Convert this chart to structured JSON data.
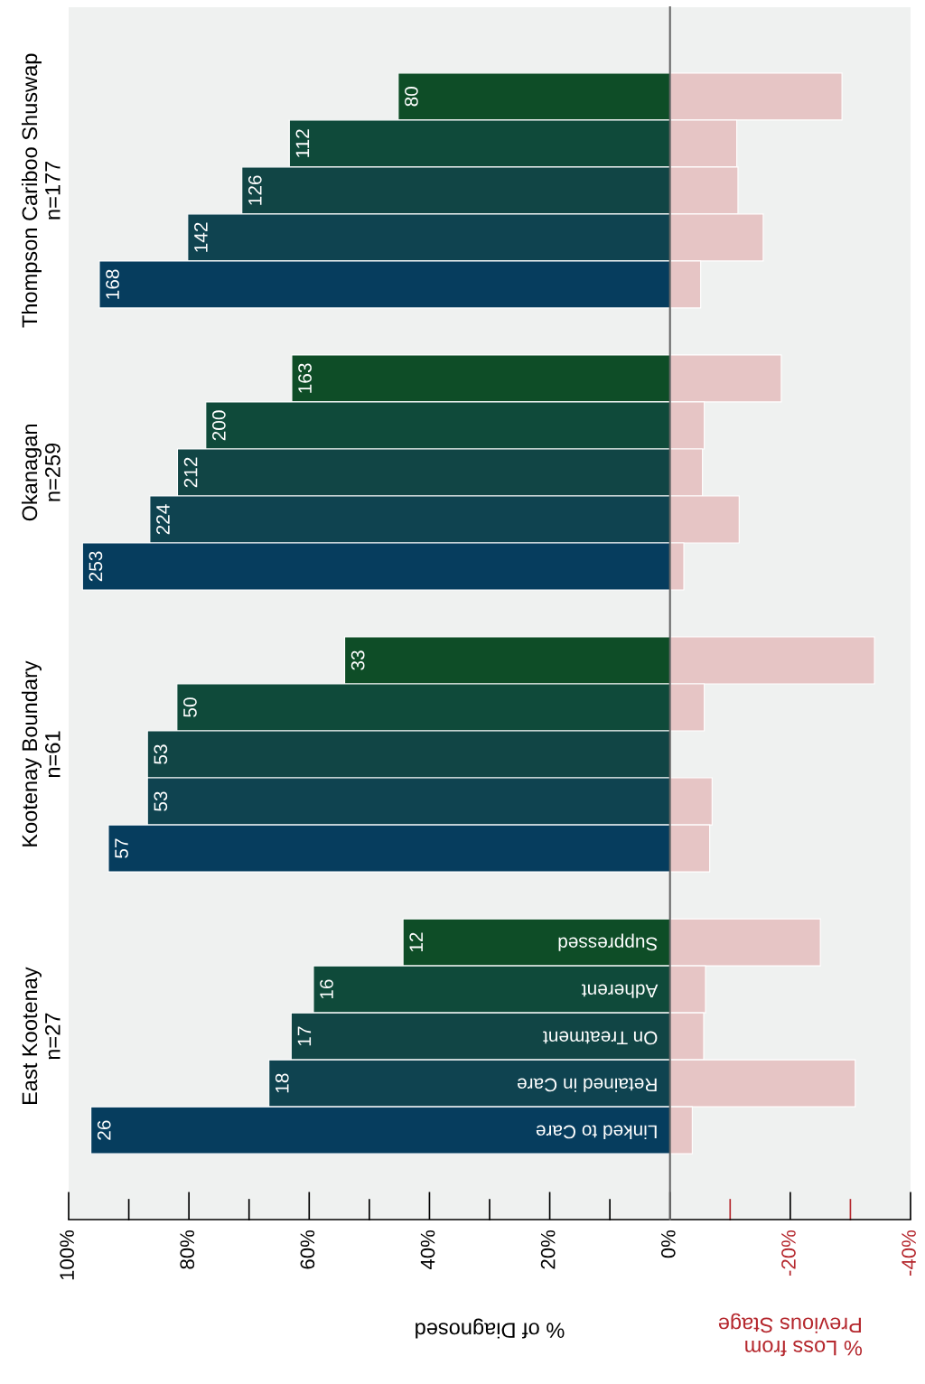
{
  "chart_data": {
    "type": "bar",
    "orientation": "horizontal",
    "xlabel": "% of Diagnosed",
    "categories": [
      null,
      null,
      null,
      null,
      null,
      null,
      null,
      null,
      null,
      null,
      null,
      null,
      null,
      null,
      null,
      null,
      null,
      null,
      "Suppressed",
      "Adherent",
      "On Treatment",
      "Retained in Care",
      "Linked to Care"
    ],
    "series": [
      {
        "colors": [
          "#0e4d27",
          "#0f4a3a",
          "#114545",
          "#0f4350",
          "#063d5e",
          null,
          "#0e4d27",
          "#0f4a3a",
          "#114545",
          "#0f4350",
          "#063d5e",
          null,
          "#0e4d27",
          "#0f4a3a",
          "#114545",
          "#0f4350",
          "#063d5e",
          null,
          "#0e4d27",
          "#0f4a3a",
          "#114545",
          "#0f4350",
          "#063d5e"
        ],
        "values": [
          45.2,
          63.3,
          71.2,
          80.2,
          94.9,
          null,
          62.9,
          77.2,
          81.9,
          86.5,
          97.7,
          null,
          54.1,
          82.0,
          86.9,
          86.9,
          93.4,
          null,
          44.4,
          59.3,
          63.0,
          66.7,
          96.3
        ]
      },
      {
        "color": "#e6c5c5",
        "values": [
          -28.6,
          -11.1,
          -11.3,
          -15.5,
          -5.1,
          null,
          -18.5,
          -5.7,
          -5.4,
          -11.5,
          -2.3,
          null,
          -34.0,
          -5.7,
          0,
          -7.0,
          -6.6,
          null,
          -25.0,
          -5.9,
          -5.6,
          -30.8,
          -3.7
        ]
      }
    ],
    "xlim": [
      100,
      -40
    ],
    "xticks": [
      {
        "value": 100,
        "label": "100%"
      },
      {
        "value": 80,
        "label": "80%"
      },
      {
        "value": 60,
        "label": "60%"
      },
      {
        "value": 40,
        "label": "40%"
      },
      {
        "value": 20,
        "label": "20%"
      },
      {
        "value": 0,
        "label": "0%"
      },
      {
        "value": -20,
        "label": "-20%"
      },
      {
        "value": -40,
        "label": "-40%"
      }
    ],
    "stacked": true,
    "annotations": [
      "Thompson Cariboo Shuswap\nn=177",
      "Okanagan\nn=259",
      "Kootenay Boundary\nn=61",
      "East Kootenay\nn=27",
      "% Loss from\nPrevious Stage",
      {
        "text": "80",
        "x": 45.2
      },
      {
        "text": "112",
        "x": 63.3
      },
      {
        "text": "126",
        "x": 71.2
      },
      {
        "text": "142",
        "x": 80.2
      },
      {
        "text": "168",
        "x": 94.9
      },
      {
        "text": "163",
        "x": 62.9
      },
      {
        "text": "200",
        "x": 77.2
      },
      {
        "text": "212",
        "x": 81.9
      },
      {
        "text": "224",
        "x": 86.5
      },
      {
        "text": "253",
        "x": 97.7
      },
      {
        "text": "33",
        "x": 54.1
      },
      {
        "text": "50",
        "x": 82.0
      },
      {
        "text": "53",
        "x": 86.9
      },
      {
        "text": "53",
        "x": 86.9
      },
      {
        "text": "57",
        "x": 93.4
      },
      {
        "text": "12",
        "x": 44.4
      },
      {
        "text": "16",
        "x": 59.3
      },
      {
        "text": "17",
        "x": 63.0
      },
      {
        "text": "18",
        "x": 66.7
      },
      {
        "text": "26",
        "x": 96.3
      }
    ],
    "grid": false,
    "legend": false
  }
}
